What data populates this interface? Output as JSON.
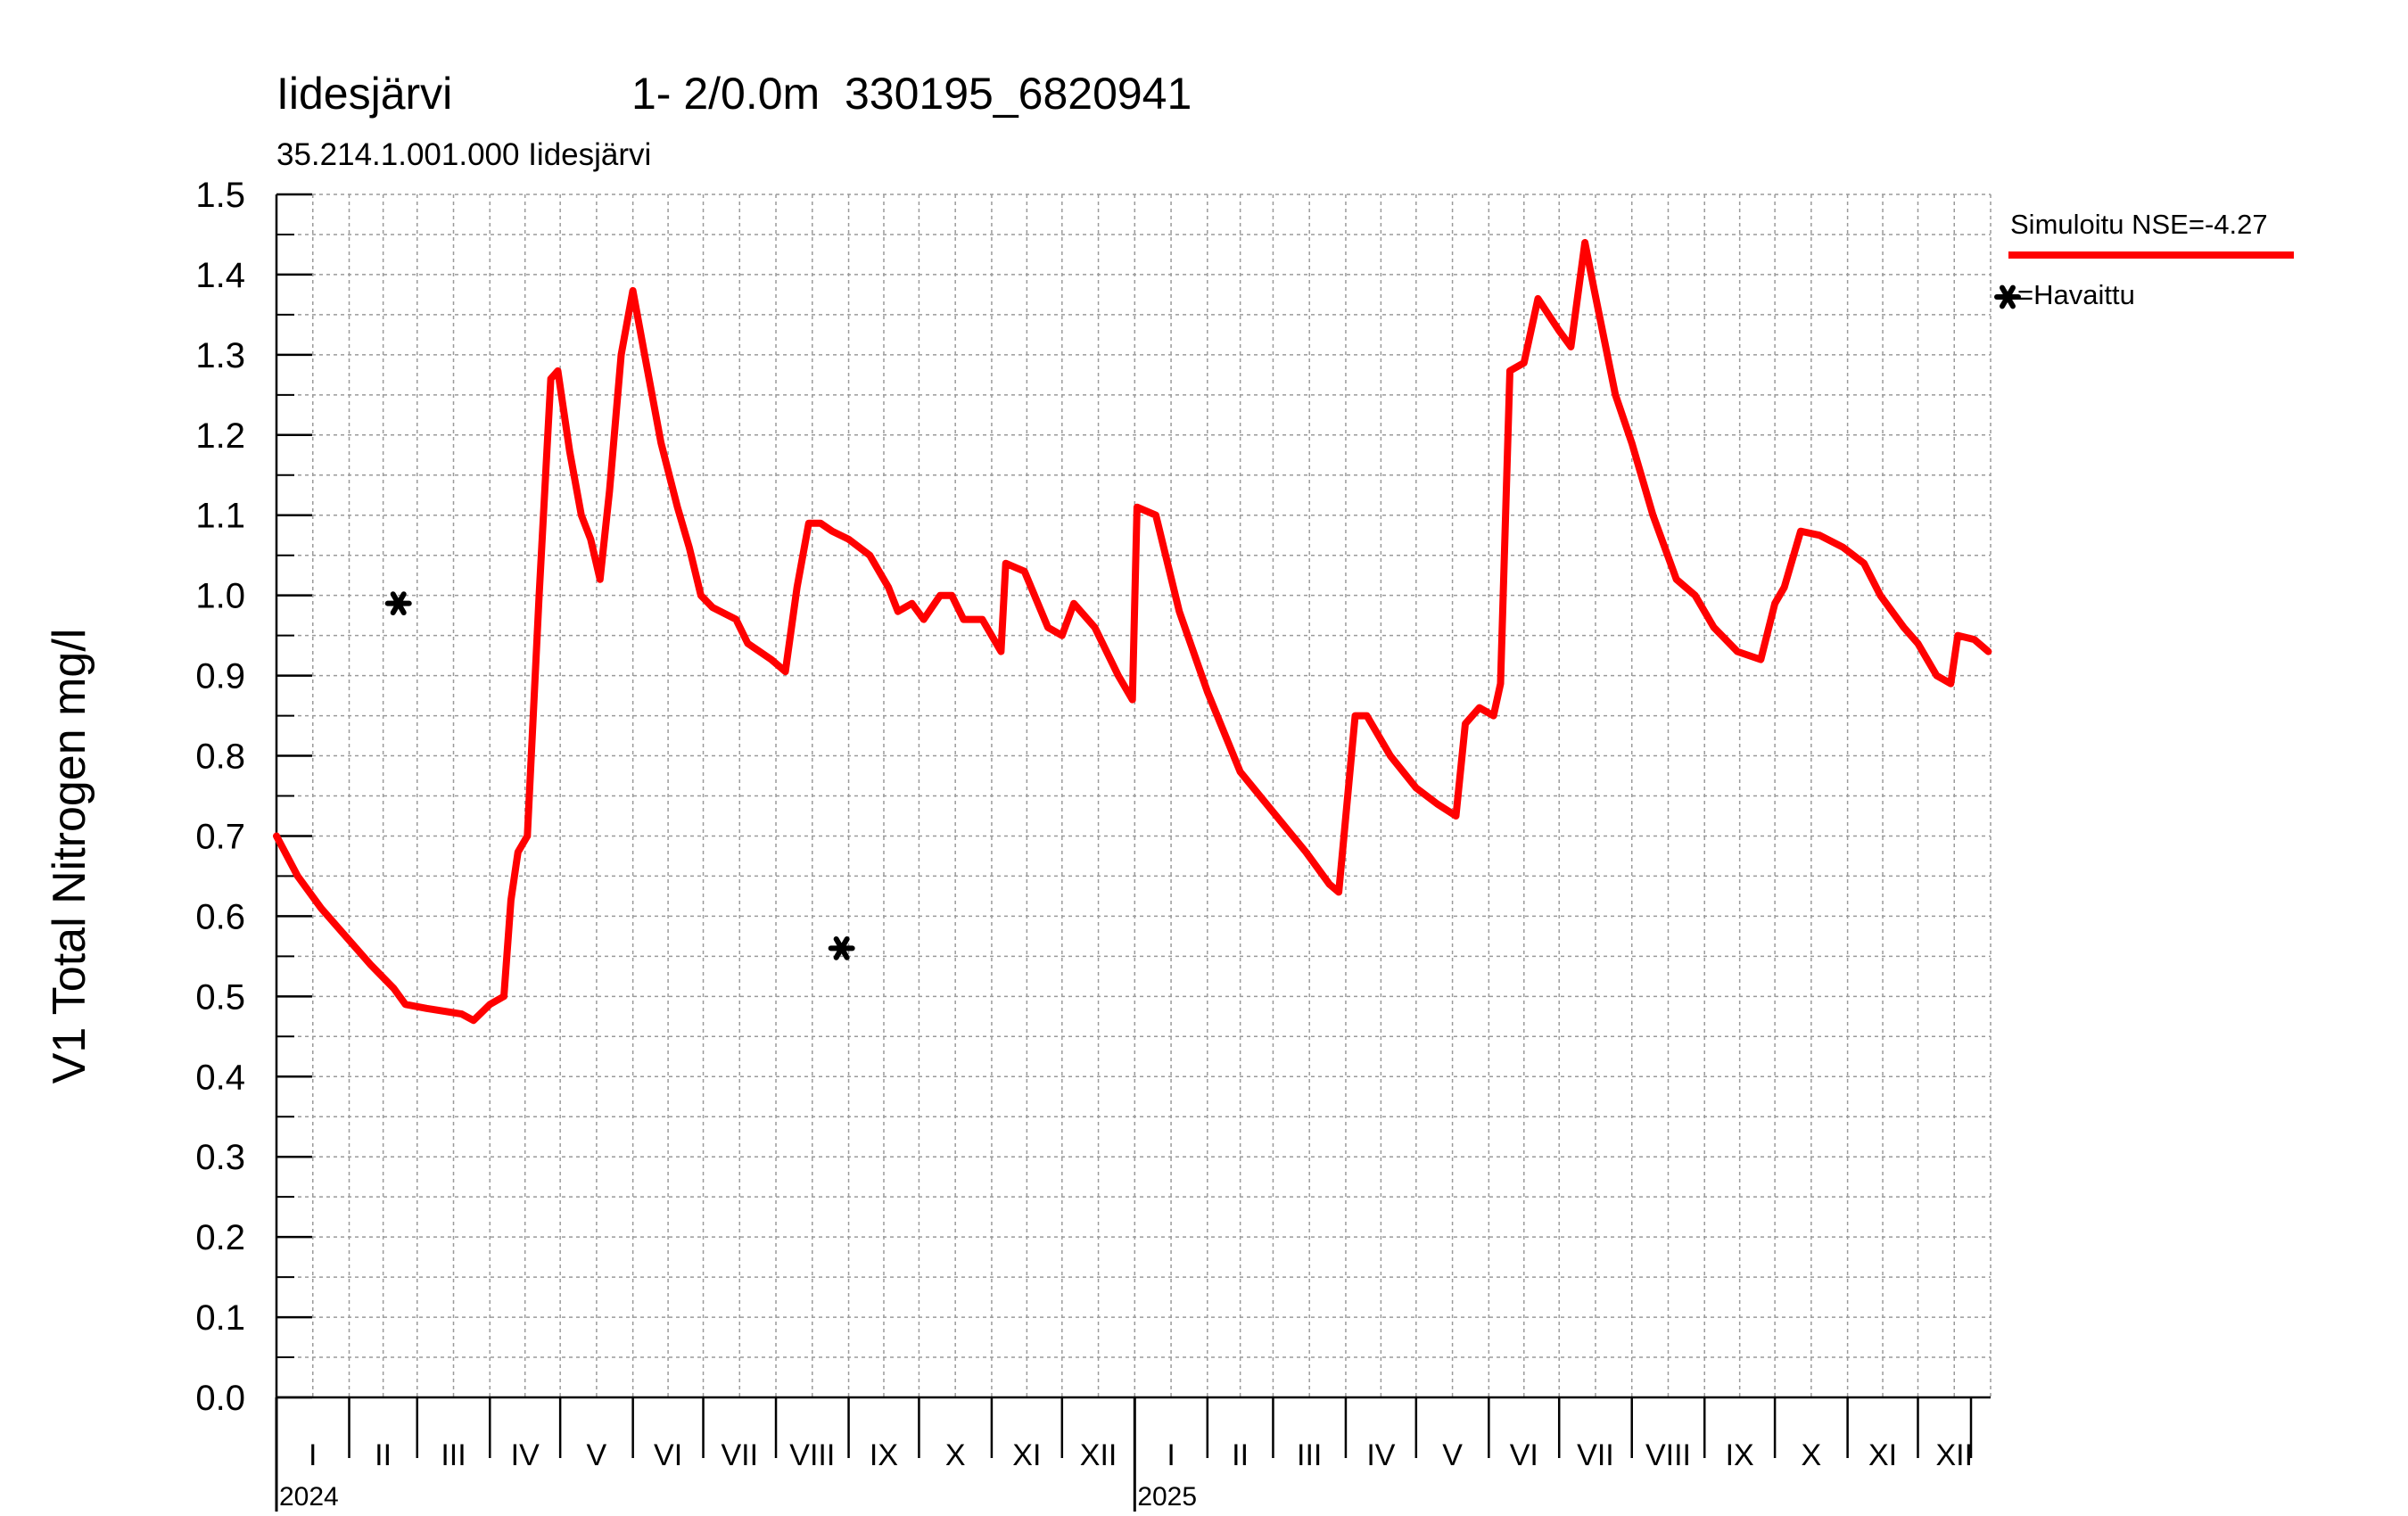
{
  "chart_data": {
    "type": "line",
    "title": "Iidesjärvi",
    "title_detail": "1- 2/0.0m  330195_6820941",
    "subtitle": "35.214.1.001.000 Iidesjärvi",
    "ylabel": "V1 Total Nitrogen mg/l",
    "ylim": [
      0.0,
      1.5
    ],
    "yticks": [
      "0.0",
      "0.1",
      "0.2",
      "0.3",
      "0.4",
      "0.5",
      "0.6",
      "0.7",
      "0.8",
      "0.9",
      "1.0",
      "1.1",
      "1.2",
      "1.3",
      "1.4",
      "1.5"
    ],
    "xlim": [
      "2024-01-01",
      "2025-12-31"
    ],
    "months": [
      "I",
      "II",
      "III",
      "IV",
      "V",
      "VI",
      "VII",
      "VIII",
      "IX",
      "X",
      "XI",
      "XII"
    ],
    "years": [
      "2024",
      "2025"
    ],
    "grid": true,
    "legend_position": "top-right",
    "colors": {
      "simulated": "#ff0000",
      "observed": "#000000",
      "grid": "#9a9a9a"
    },
    "series": [
      {
        "name": "Simuloitu NSE=-4.27",
        "style": "line",
        "points": [
          [
            "2024-01-01",
            0.7
          ],
          [
            "2024-01-10",
            0.65
          ],
          [
            "2024-01-20",
            0.61
          ],
          [
            "2024-02-01",
            0.57
          ],
          [
            "2024-02-10",
            0.54
          ],
          [
            "2024-02-20",
            0.51
          ],
          [
            "2024-02-25",
            0.49
          ],
          [
            "2024-03-05",
            0.485
          ],
          [
            "2024-03-20",
            0.478
          ],
          [
            "2024-03-25",
            0.47
          ],
          [
            "2024-04-01",
            0.49
          ],
          [
            "2024-04-07",
            0.5
          ],
          [
            "2024-04-10",
            0.62
          ],
          [
            "2024-04-13",
            0.68
          ],
          [
            "2024-04-17",
            0.7
          ],
          [
            "2024-04-22",
            1.0
          ],
          [
            "2024-04-27",
            1.27
          ],
          [
            "2024-04-30",
            1.28
          ],
          [
            "2024-05-05",
            1.18
          ],
          [
            "2024-05-10",
            1.1
          ],
          [
            "2024-05-14",
            1.07
          ],
          [
            "2024-05-18",
            1.02
          ],
          [
            "2024-05-22",
            1.13
          ],
          [
            "2024-05-27",
            1.3
          ],
          [
            "2024-06-01",
            1.38
          ],
          [
            "2024-06-06",
            1.3
          ],
          [
            "2024-06-13",
            1.19
          ],
          [
            "2024-06-20",
            1.11
          ],
          [
            "2024-06-25",
            1.06
          ],
          [
            "2024-06-30",
            1.0
          ],
          [
            "2024-07-05",
            0.985
          ],
          [
            "2024-07-15",
            0.97
          ],
          [
            "2024-07-20",
            0.94
          ],
          [
            "2024-07-30",
            0.92
          ],
          [
            "2024-08-05",
            0.905
          ],
          [
            "2024-08-10",
            1.01
          ],
          [
            "2024-08-15",
            1.09
          ],
          [
            "2024-08-20",
            1.09
          ],
          [
            "2024-08-25",
            1.08
          ],
          [
            "2024-09-01",
            1.07
          ],
          [
            "2024-09-10",
            1.05
          ],
          [
            "2024-09-18",
            1.01
          ],
          [
            "2024-09-22",
            0.98
          ],
          [
            "2024-09-28",
            0.99
          ],
          [
            "2024-10-03",
            0.97
          ],
          [
            "2024-10-10",
            1.0
          ],
          [
            "2024-10-15",
            1.0
          ],
          [
            "2024-10-20",
            0.97
          ],
          [
            "2024-10-28",
            0.97
          ],
          [
            "2024-11-05",
            0.93
          ],
          [
            "2024-11-07",
            1.04
          ],
          [
            "2024-11-15",
            1.03
          ],
          [
            "2024-11-25",
            0.96
          ],
          [
            "2024-12-01",
            0.95
          ],
          [
            "2024-12-06",
            0.99
          ],
          [
            "2024-12-15",
            0.96
          ],
          [
            "2024-12-25",
            0.9
          ],
          [
            "2024-12-31",
            0.87
          ],
          [
            "2025-01-02",
            1.11
          ],
          [
            "2025-01-10",
            1.1
          ],
          [
            "2025-01-20",
            0.98
          ],
          [
            "2025-02-01",
            0.88
          ],
          [
            "2025-02-15",
            0.78
          ],
          [
            "2025-03-01",
            0.73
          ],
          [
            "2025-03-15",
            0.68
          ],
          [
            "2025-03-25",
            0.64
          ],
          [
            "2025-03-29",
            0.63
          ],
          [
            "2025-04-05",
            0.85
          ],
          [
            "2025-04-10",
            0.85
          ],
          [
            "2025-04-20",
            0.8
          ],
          [
            "2025-05-01",
            0.76
          ],
          [
            "2025-05-10",
            0.74
          ],
          [
            "2025-05-18",
            0.725
          ],
          [
            "2025-05-22",
            0.84
          ],
          [
            "2025-05-28",
            0.86
          ],
          [
            "2025-06-03",
            0.85
          ],
          [
            "2025-06-06",
            0.89
          ],
          [
            "2025-06-10",
            1.28
          ],
          [
            "2025-06-16",
            1.29
          ],
          [
            "2025-06-22",
            1.37
          ],
          [
            "2025-07-01",
            1.33
          ],
          [
            "2025-07-06",
            1.31
          ],
          [
            "2025-07-12",
            1.44
          ],
          [
            "2025-07-16",
            1.38
          ],
          [
            "2025-07-25",
            1.25
          ],
          [
            "2025-08-01",
            1.19
          ],
          [
            "2025-08-10",
            1.1
          ],
          [
            "2025-08-20",
            1.02
          ],
          [
            "2025-08-28",
            1.0
          ],
          [
            "2025-09-05",
            0.96
          ],
          [
            "2025-09-15",
            0.93
          ],
          [
            "2025-09-25",
            0.92
          ],
          [
            "2025-10-01",
            0.99
          ],
          [
            "2025-10-05",
            1.01
          ],
          [
            "2025-10-12",
            1.08
          ],
          [
            "2025-10-20",
            1.075
          ],
          [
            "2025-10-30",
            1.06
          ],
          [
            "2025-11-08",
            1.04
          ],
          [
            "2025-11-15",
            1.0
          ],
          [
            "2025-11-25",
            0.96
          ],
          [
            "2025-12-01",
            0.94
          ],
          [
            "2025-12-09",
            0.9
          ],
          [
            "2025-12-15",
            0.89
          ],
          [
            "2025-12-18",
            0.95
          ],
          [
            "2025-12-25",
            0.945
          ],
          [
            "2025-12-31",
            0.93
          ]
        ]
      },
      {
        "name": "Havaittu",
        "style": "markers",
        "marker": "asterisk",
        "points": [
          [
            "2024-02-22",
            0.99
          ],
          [
            "2024-08-29",
            0.56
          ]
        ]
      }
    ],
    "legend": {
      "simulated_label": "Simuloitu NSE=-4.27",
      "observed_label": "=Havaittu"
    }
  }
}
